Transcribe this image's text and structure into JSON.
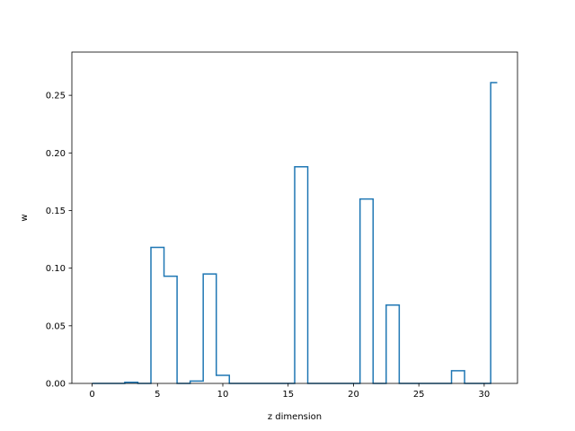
{
  "chart_data": {
    "type": "line",
    "drawstyle": "steps-mid",
    "xlabel": "z dimension",
    "ylabel": "w",
    "xlim": [
      -1.55,
      32.55
    ],
    "ylim": [
      0,
      0.2875
    ],
    "xticks": [
      0,
      5,
      10,
      15,
      20,
      25,
      30
    ],
    "xtick_labels": [
      "0",
      "5",
      "10",
      "15",
      "20",
      "25",
      "30"
    ],
    "yticks": [
      0,
      0.05,
      0.1,
      0.15,
      0.2,
      0.25
    ],
    "ytick_labels": [
      "0.00",
      "0.05",
      "0.10",
      "0.15",
      "0.20",
      "0.25"
    ],
    "grid": false,
    "line_color": "#1f77b4",
    "series": [
      {
        "x": [
          0,
          1,
          2,
          3,
          4,
          5,
          6,
          7,
          8,
          9,
          10,
          11,
          12,
          13,
          14,
          15,
          16,
          17,
          18,
          19,
          20,
          21,
          22,
          23,
          24,
          25,
          26,
          27,
          28,
          29,
          30,
          31
        ],
        "values": [
          0,
          0,
          0,
          0.001,
          0,
          0.118,
          0.093,
          0,
          0.002,
          0.095,
          0.007,
          0,
          0,
          0,
          0,
          0,
          0.188,
          0,
          0,
          0,
          0,
          0.16,
          0,
          0.068,
          0,
          0,
          0,
          0,
          0.011,
          0,
          0,
          0.261
        ]
      }
    ]
  }
}
